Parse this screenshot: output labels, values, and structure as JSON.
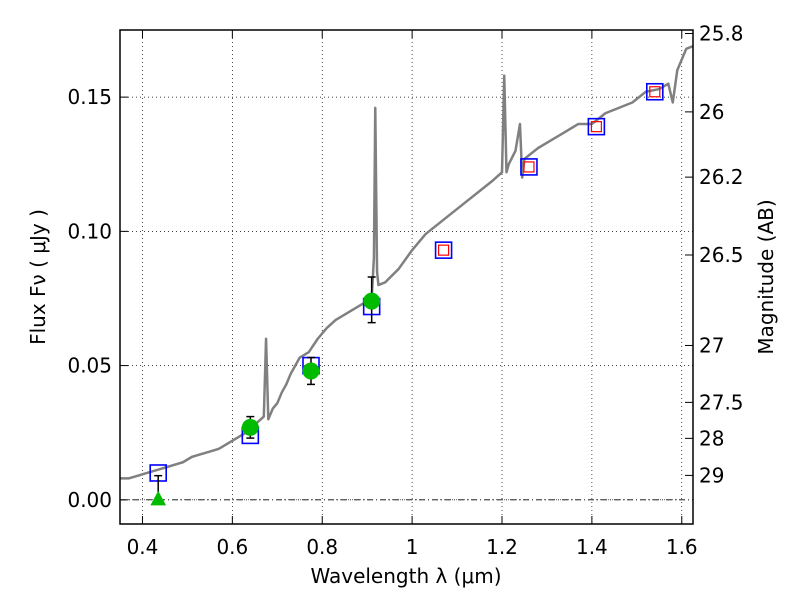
{
  "chart_data": {
    "type": "scatter",
    "xlabel": "Wavelength λ (μm)",
    "ylabel": "Flux Fν ( μJy )",
    "y2label": "Magnitude (AB)",
    "xlim": [
      0.35,
      1.625
    ],
    "ylim": [
      -0.009,
      0.175
    ],
    "xticks": [
      0.4,
      0.6,
      0.8,
      1.0,
      1.2,
      1.4,
      1.6
    ],
    "xtick_labels": [
      "0.4",
      "0.6",
      "0.8",
      "1",
      "1.2",
      "1.4",
      "1.6"
    ],
    "yticks": [
      0.0,
      0.05,
      0.1,
      0.15
    ],
    "ytick_labels": [
      "0.00",
      "0.05",
      "0.10",
      "0.15"
    ],
    "y2ticks": [
      {
        "label": "25.8",
        "flux": 0.1737
      },
      {
        "label": "26",
        "flux": 0.1445
      },
      {
        "label": "26.2",
        "flux": 0.1202
      },
      {
        "label": "26.5",
        "flux": 0.0912
      },
      {
        "label": "27",
        "flux": 0.0575
      },
      {
        "label": "27.5",
        "flux": 0.0363
      },
      {
        "label": "28",
        "flux": 0.0229
      },
      {
        "label": "29",
        "flux": 0.0091
      }
    ],
    "grid": true,
    "series": [
      {
        "style": "line",
        "color": "#808080",
        "x": [
          0.35,
          0.37,
          0.39,
          0.41,
          0.43,
          0.45,
          0.47,
          0.49,
          0.51,
          0.53,
          0.55,
          0.57,
          0.59,
          0.61,
          0.63,
          0.65,
          0.67,
          0.675,
          0.68,
          0.69,
          0.7,
          0.71,
          0.72,
          0.73,
          0.74,
          0.75,
          0.77,
          0.79,
          0.81,
          0.83,
          0.85,
          0.87,
          0.89,
          0.91,
          0.915,
          0.918,
          0.922,
          0.925,
          0.94,
          0.97,
          1.0,
          1.03,
          1.06,
          1.09,
          1.12,
          1.15,
          1.18,
          1.2,
          1.205,
          1.21,
          1.215,
          1.23,
          1.24,
          1.245,
          1.25,
          1.28,
          1.31,
          1.34,
          1.37,
          1.4,
          1.43,
          1.46,
          1.49,
          1.52,
          1.55,
          1.57,
          1.58,
          1.59,
          1.6,
          1.61,
          1.625
        ],
        "y": [
          0.008,
          0.008,
          0.009,
          0.01,
          0.011,
          0.012,
          0.013,
          0.014,
          0.016,
          0.017,
          0.018,
          0.019,
          0.021,
          0.023,
          0.025,
          0.028,
          0.031,
          0.06,
          0.03,
          0.034,
          0.036,
          0.04,
          0.043,
          0.047,
          0.05,
          0.053,
          0.055,
          0.06,
          0.064,
          0.067,
          0.069,
          0.071,
          0.073,
          0.075,
          0.09,
          0.146,
          0.085,
          0.08,
          0.081,
          0.086,
          0.093,
          0.099,
          0.103,
          0.107,
          0.111,
          0.115,
          0.119,
          0.122,
          0.158,
          0.122,
          0.125,
          0.13,
          0.14,
          0.12,
          0.127,
          0.131,
          0.134,
          0.137,
          0.14,
          0.14,
          0.144,
          0.146,
          0.148,
          0.152,
          0.153,
          0.155,
          0.148,
          0.16,
          0.164,
          0.168,
          0.169
        ]
      },
      {
        "style": "square",
        "color": "#0000ff",
        "x": [
          0.435,
          0.64,
          0.775,
          0.91,
          1.07,
          1.26,
          1.41,
          1.54
        ],
        "y": [
          0.01,
          0.024,
          0.05,
          0.072,
          0.093,
          0.124,
          0.139,
          0.152
        ]
      },
      {
        "style": "square-small",
        "color": "#ff0000",
        "x": [
          1.07,
          1.26,
          1.41,
          1.54
        ],
        "y": [
          0.093,
          0.124,
          0.139,
          0.152
        ]
      },
      {
        "style": "point",
        "color": "#00bb00",
        "x": [
          0.435,
          0.64,
          0.775,
          0.91
        ],
        "y": [
          0.0,
          0.027,
          0.048,
          0.074
        ],
        "yerr_low": [
          0.0,
          0.004,
          0.005,
          0.008
        ],
        "yerr_high": [
          0.009,
          0.004,
          0.005,
          0.009
        ],
        "markers": [
          "triangle",
          "circle",
          "circle",
          "circle"
        ]
      }
    ]
  }
}
